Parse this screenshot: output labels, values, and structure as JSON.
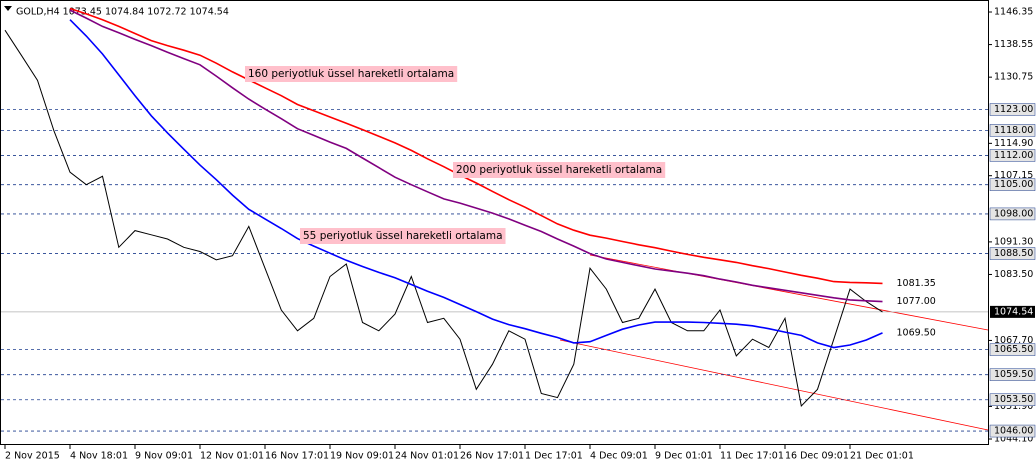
{
  "chart_data": {
    "type": "line",
    "title": "GOLD,H4  1073.45 1074.84 1072.72 1074.54",
    "categories": [
      "2 Nov 2015",
      null,
      null,
      null,
      "4 Nov 18:01",
      null,
      null,
      null,
      "9 Nov 09:01",
      null,
      null,
      null,
      "12 Nov 01:01",
      null,
      null,
      null,
      "16 Nov 17:01",
      null,
      null,
      null,
      "19 Nov 09:01",
      null,
      null,
      null,
      "24 Nov 01:01",
      null,
      null,
      null,
      "26 Nov 17:01",
      null,
      null,
      null,
      "1 Dec 17:01",
      null,
      null,
      null,
      "4 Dec 09:01",
      null,
      null,
      null,
      "9 Dec 01:01",
      null,
      null,
      null,
      "11 Dec 17:01",
      null,
      null,
      null,
      "16 Dec 09:01",
      null,
      null,
      null,
      "21 Dec 01:01",
      null,
      null
    ],
    "series": [
      {
        "color": "#000000",
        "values": [
          1142,
          1136,
          1130,
          1118,
          1108,
          1105,
          1107,
          1090,
          1094,
          1093,
          1092,
          1090,
          1089,
          1087,
          1088,
          1095,
          1085,
          1075,
          1070,
          1073,
          1083,
          1086,
          1072,
          1070,
          1074,
          1083,
          1072,
          1073,
          1068,
          1056,
          1062,
          1070,
          1068,
          1055,
          1054,
          1062,
          1085,
          1080,
          1072,
          1073,
          1080,
          1072,
          1070,
          1070,
          1075,
          1064,
          1068,
          1066,
          1073,
          1052,
          1056,
          1068,
          1080,
          1077,
          1074.54
        ]
      },
      {
        "color": "#ff0000",
        "end_label": "1081.35",
        "values": [
          null,
          null,
          null,
          null,
          1147.2,
          1145.9,
          1144.5,
          1142.9,
          1141.2,
          1139.5,
          1138.3,
          1137.2,
          1136,
          1134.1,
          1132,
          1130.1,
          1128.2,
          1126.3,
          1124.2,
          1122.7,
          1121.2,
          1119.7,
          1118.2,
          1116.6,
          1115,
          1113.2,
          1111.2,
          1109.3,
          1107.3,
          1105.4,
          1103.4,
          1101.4,
          1099.6,
          1097.6,
          1095.6,
          1094.1,
          1092.9,
          1092.2,
          1091.4,
          1090.6,
          1089.9,
          1089.1,
          1088.3,
          1087.6,
          1087,
          1086.4,
          1085.6,
          1084.9,
          1084.1,
          1083.3,
          1082.6,
          1081.8,
          1081.6,
          1081.5,
          1081.35
        ]
      },
      {
        "color": "#800080",
        "end_label": "1077.00",
        "values": [
          null,
          null,
          null,
          null,
          1146.8,
          1144.9,
          1142.9,
          1141.4,
          1139.8,
          1138.3,
          1136.7,
          1135.2,
          1133.7,
          1131,
          1128.2,
          1125.5,
          1123.1,
          1120.8,
          1118.4,
          1116.8,
          1115.2,
          1113.7,
          1111.4,
          1109.1,
          1106.8,
          1105,
          1103.3,
          1101.6,
          1100.6,
          1099.4,
          1098.2,
          1096.8,
          1095.3,
          1093.8,
          1092,
          1090.3,
          1088.5,
          1087.2,
          1086.4,
          1085.6,
          1084.8,
          1084.3,
          1083.8,
          1083.2,
          1082.4,
          1081.7,
          1080.9,
          1080.3,
          1079.7,
          1079.1,
          1078.5,
          1077.9,
          1077.4,
          1077.2,
          1077
        ]
      },
      {
        "color": "#0000ff",
        "end_label": "1069.50",
        "values": [
          null,
          null,
          null,
          null,
          1144.5,
          1140.6,
          1136.3,
          1131.3,
          1126.3,
          1121.5,
          1117.4,
          1113.5,
          1109.7,
          1106.2,
          1102.5,
          1099.1,
          1096.8,
          1094.5,
          1092.1,
          1090.3,
          1088.6,
          1086.9,
          1085.4,
          1084,
          1082.7,
          1081.1,
          1079.5,
          1078,
          1076.3,
          1074.6,
          1072.8,
          1071.5,
          1070.5,
          1069.4,
          1068.4,
          1067.1,
          1067.4,
          1068.9,
          1070.4,
          1071.4,
          1072.1,
          1072.1,
          1072.1,
          1072,
          1071.8,
          1071.6,
          1071.2,
          1070.5,
          1069.7,
          1068.9,
          1067.1,
          1066,
          1066.6,
          1067.8,
          1069.5
        ]
      }
    ],
    "ylim": [
      1042.66,
      1148.03
    ],
    "yticks": [
      1146.35,
      1138.55,
      1130.75,
      {
        "value": 1114.9,
        "label": "1114.90"
      },
      1107.15,
      {
        "value": 1091.3,
        "label": "1091.30"
      },
      {
        "value": 1083.5,
        "label": "1083.50"
      },
      {
        "value": 1067.7,
        "label": "1067.70"
      },
      {
        "value": 1051.9,
        "label": "1051.90"
      },
      {
        "value": 1044.1,
        "label": "1044.10"
      }
    ],
    "levels": [
      {
        "value": 1123,
        "label": "1123.00"
      },
      {
        "value": 1118,
        "label": "1118.00"
      },
      {
        "value": 1112,
        "label": "1112.00"
      },
      {
        "value": 1105,
        "label": "1105.00"
      },
      {
        "value": 1098,
        "label": "1098.00"
      },
      {
        "value": 1088.5,
        "label": "1088.50"
      },
      {
        "value": 1065.5,
        "label": "1065.50"
      },
      {
        "value": 1059.5,
        "label": "1059.50"
      },
      {
        "value": 1053.5,
        "label": "1053.50"
      },
      {
        "value": 1046,
        "label": "1046.00"
      }
    ],
    "current_price": 1074.54,
    "level_color": "#1f3f8f",
    "annotations": [
      "160 periyotluk üssel hareketli ortalama",
      "200 periyotluk üssel hareketli ortalama",
      "55 periyotluk üssel hareketli ortalama"
    ]
  }
}
